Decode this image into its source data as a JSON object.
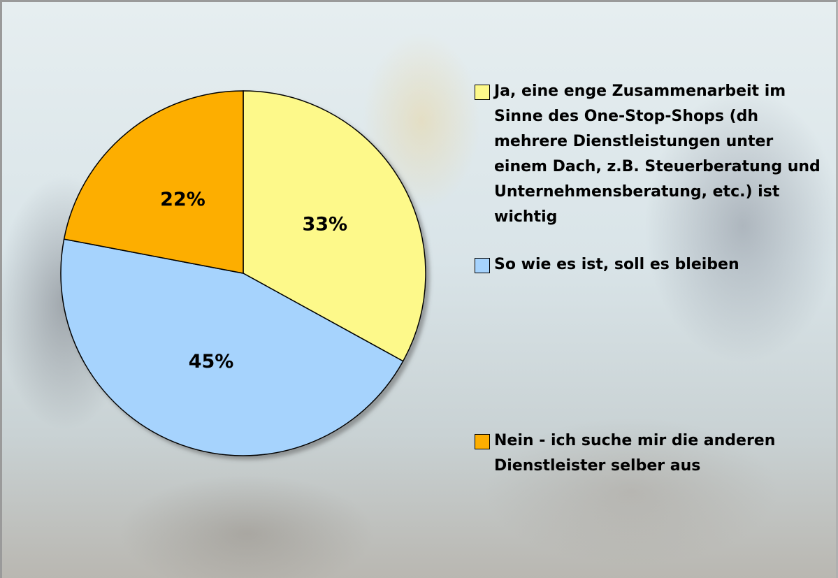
{
  "chart_data": {
    "type": "pie",
    "categories": [
      "Ja, eine enge Zusammenarbeit im Sinne des One-Stop-Shops (dh mehrere Dienstleistungen unter einem Dach, z.B. Steuerberatung und Unternehmensberatung, etc.) ist wichtig",
      "So wie es ist, soll es bleiben",
      "Nein - ich suche mir die anderen Dienstleister selber aus"
    ],
    "values": [
      33,
      45,
      22
    ],
    "value_labels": [
      "33%",
      "45%",
      "22%"
    ],
    "colors": [
      "#fdf98a",
      "#a6d3fd",
      "#fdae00"
    ],
    "legend": "right"
  }
}
